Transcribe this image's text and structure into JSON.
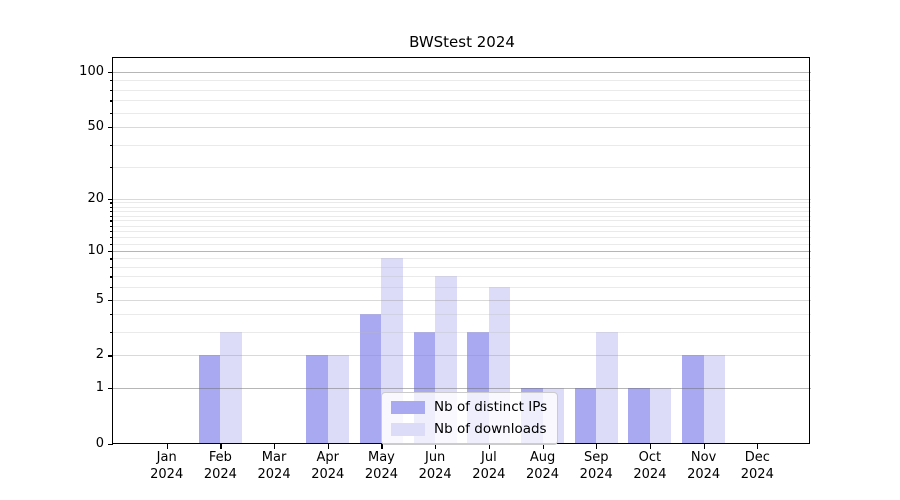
{
  "title": "BWStest 2024",
  "legend": {
    "items": [
      {
        "label": "Nb of distinct IPs",
        "color": "#a9a9f2"
      },
      {
        "label": "Nb of downloads",
        "color": "#dcdcf8"
      }
    ]
  },
  "chart_data": {
    "type": "bar",
    "title": "BWStest 2024",
    "categories": [
      "Jan 2024",
      "Feb 2024",
      "Mar 2024",
      "Apr 2024",
      "May 2024",
      "Jun 2024",
      "Jul 2024",
      "Aug 2024",
      "Sep 2024",
      "Oct 2024",
      "Nov 2024",
      "Dec 2024"
    ],
    "series": [
      {
        "name": "Nb of distinct IPs",
        "color": "#a9a9f2",
        "values": [
          0,
          2,
          0,
          2,
          4,
          3,
          3,
          1,
          1,
          1,
          2,
          0
        ]
      },
      {
        "name": "Nb of downloads",
        "color": "#dcdcf8",
        "values": [
          0,
          3,
          0,
          2,
          9,
          7,
          6,
          1,
          3,
          1,
          2,
          0
        ]
      }
    ],
    "xlabel": "",
    "ylabel": "",
    "yscale": "log1p",
    "ylim": [
      0,
      119
    ],
    "y_major_ticks": [
      0,
      1,
      2,
      5,
      10,
      20,
      50,
      100
    ],
    "y_emphasized_gridlines": [
      1,
      10,
      100
    ],
    "y_minor_ticks": [
      3,
      4,
      6,
      7,
      8,
      9,
      11,
      12,
      13,
      14,
      15,
      16,
      17,
      18,
      19,
      30,
      40,
      60,
      70,
      80,
      90
    ],
    "grid": "horizontal, drawn over bars",
    "legend_position": "lower center inside plot"
  }
}
